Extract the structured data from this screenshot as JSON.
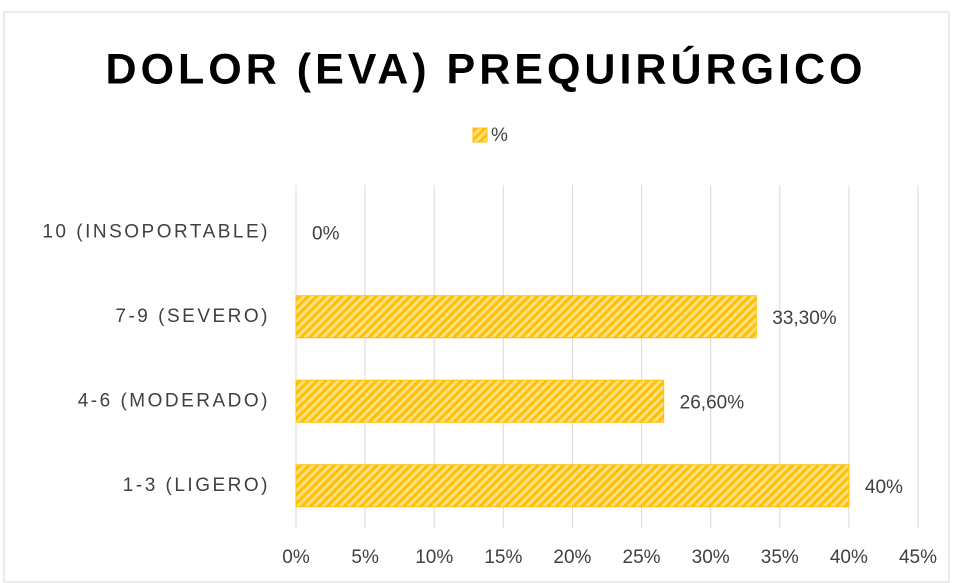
{
  "chart_data": {
    "type": "bar",
    "orientation": "horizontal",
    "title": "DOLOR (EVA) PREQUIRÚRGICO",
    "categories": [
      "10 (INSOPORTABLE)",
      "7-9 (SEVERO)",
      "4-6 (MODERADO)",
      "1-3 (LIGERO)"
    ],
    "series": [
      {
        "name": "%",
        "color": "#ffc000",
        "values": [
          0,
          33.3,
          26.6,
          40
        ],
        "value_labels": [
          "0%",
          "33,30%",
          "26,60%",
          "40%"
        ]
      }
    ],
    "xlim": [
      0,
      45
    ],
    "xticks": [
      {
        "value": 0,
        "label": "0%"
      },
      {
        "value": 5,
        "label": "5%"
      },
      {
        "value": 10,
        "label": "10%"
      },
      {
        "value": 15,
        "label": "15%"
      },
      {
        "value": 20,
        "label": "20%"
      },
      {
        "value": 25,
        "label": "25%"
      },
      {
        "value": 30,
        "label": "30%"
      },
      {
        "value": 35,
        "label": "35%"
      },
      {
        "value": 40,
        "label": "40%"
      },
      {
        "value": 45,
        "label": "45%"
      }
    ],
    "grid": true,
    "legend": "top"
  }
}
